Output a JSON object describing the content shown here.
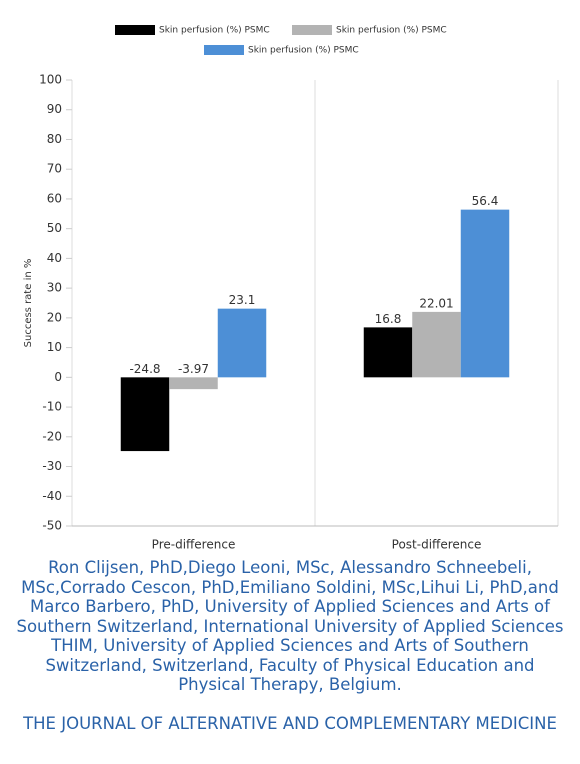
{
  "chart_data": {
    "type": "bar",
    "y_label": "Success rate in %",
    "categories": [
      "Pre-difference",
      "Post-difference"
    ],
    "series": [
      {
        "name": "Skin perfusion (%) PSMC",
        "color": "#000000",
        "values": [
          -24.8,
          16.8
        ]
      },
      {
        "name": "Skin perfusion (%) PSMC",
        "color": "#b3b3b3",
        "values": [
          -3.97,
          22.01
        ]
      },
      {
        "name": "Skin perfusion (%) PSMC",
        "color": "#4d8fd6",
        "values": [
          23.1,
          56.4
        ]
      }
    ],
    "ylim": [
      -50,
      100
    ],
    "yticks": [
      -50,
      -40,
      -30,
      -20,
      -10,
      0,
      10,
      20,
      30,
      40,
      50,
      60,
      70,
      80,
      90,
      100
    ],
    "legend": "top"
  },
  "caption": {
    "authors": "Ron Clijsen, PhD,Diego Leoni, MSc, Alessandro Schneebeli, MSc,Corrado Cescon, PhD,Emiliano Soldini, MSc,Lihui Li, PhD,and Marco Barbero, PhD, University of Applied Sciences and Arts of Southern Switzerland, International University of Applied Sciences THIM, University of Applied Sciences and Arts of Southern Switzerland, Switzerland, Faculty of Physical Education and Physical Therapy, Belgium.",
    "journal": "THE JOURNAL OF ALTERNATIVE AND COMPLEMENTARY MEDICINE"
  }
}
